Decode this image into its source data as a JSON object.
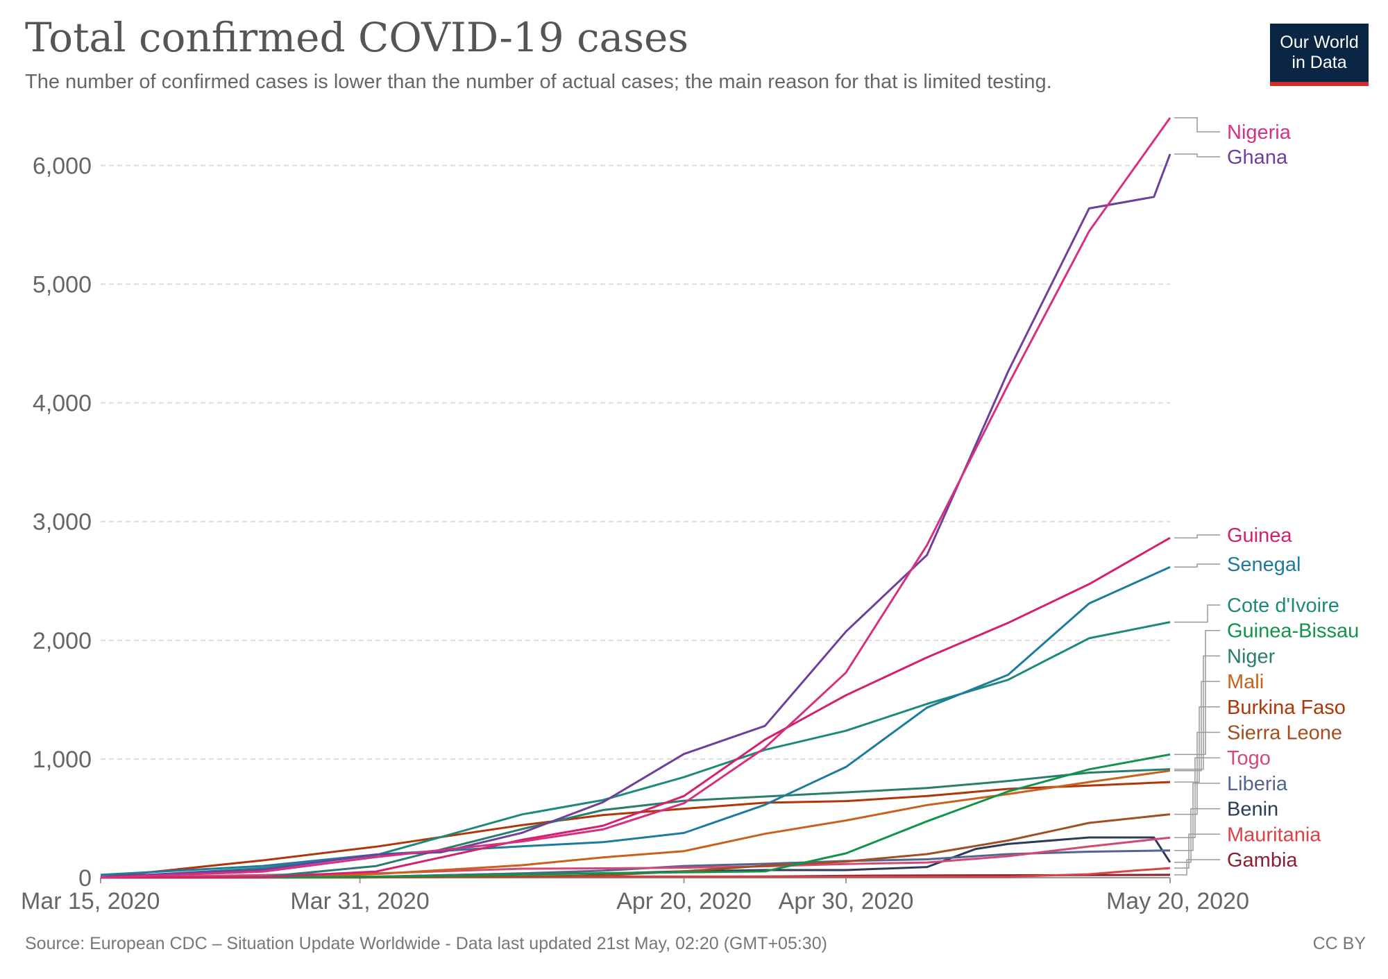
{
  "header": {
    "title": "Total confirmed COVID-19 cases",
    "subtitle": "The number of confirmed cases is lower than the number of actual cases; the main reason for that is limited testing.",
    "logo_text": "Our World in Data",
    "logo_color": "#0b2545",
    "logo_accent": "#d42b2b"
  },
  "footer": {
    "source": "Source: European CDC – Situation Update Worldwide - Data last updated 21st May, 02:20 (GMT+05:30)",
    "license": "CC BY"
  },
  "chart_data": {
    "type": "line",
    "title": "Total confirmed COVID-19 cases",
    "xlabel": "",
    "ylabel": "",
    "x_range": [
      "2020-03-15",
      "2020-05-20"
    ],
    "ylim": [
      0,
      6400
    ],
    "y_ticks": [
      0,
      1000,
      2000,
      3000,
      4000,
      5000,
      6000
    ],
    "y_tick_labels": [
      "0",
      "1,000",
      "2,000",
      "3,000",
      "4,000",
      "5,000",
      "6,000"
    ],
    "x_ticks": [
      "2020-03-15",
      "2020-03-31",
      "2020-04-20",
      "2020-04-30",
      "2020-05-20"
    ],
    "x_tick_labels": [
      "Mar 15, 2020",
      "Mar 31, 2020",
      "Apr 20, 2020",
      "Apr 30, 2020",
      "May 20, 2020"
    ],
    "grid": "horizontal dashed",
    "legend": "right, labels at line ends",
    "series": [
      {
        "name": "Nigeria",
        "color": "#d6317f",
        "points": [
          [
            "2020-03-15",
            2
          ],
          [
            "2020-03-25",
            51
          ],
          [
            "2020-04-01",
            174
          ],
          [
            "2020-04-10",
            305
          ],
          [
            "2020-04-15",
            407
          ],
          [
            "2020-04-20",
            627
          ],
          [
            "2020-04-25",
            1095
          ],
          [
            "2020-04-30",
            1728
          ],
          [
            "2020-05-05",
            2802
          ],
          [
            "2020-05-10",
            4151
          ],
          [
            "2020-05-15",
            5445
          ],
          [
            "2020-05-20",
            6401
          ]
        ]
      },
      {
        "name": "Ghana",
        "color": "#6e3f9c",
        "points": [
          [
            "2020-03-15",
            6
          ],
          [
            "2020-03-25",
            68
          ],
          [
            "2020-04-01",
            195
          ],
          [
            "2020-04-05",
            214
          ],
          [
            "2020-04-10",
            378
          ],
          [
            "2020-04-15",
            636
          ],
          [
            "2020-04-20",
            1042
          ],
          [
            "2020-04-25",
            1279
          ],
          [
            "2020-04-30",
            2074
          ],
          [
            "2020-05-05",
            2719
          ],
          [
            "2020-05-10",
            4263
          ],
          [
            "2020-05-15",
            5638
          ],
          [
            "2020-05-19",
            5735
          ],
          [
            "2020-05-20",
            6096
          ]
        ]
      },
      {
        "name": "Guinea",
        "color": "#d3216e",
        "points": [
          [
            "2020-03-15",
            1
          ],
          [
            "2020-03-25",
            4
          ],
          [
            "2020-04-01",
            52
          ],
          [
            "2020-04-10",
            319
          ],
          [
            "2020-04-15",
            438
          ],
          [
            "2020-04-20",
            688
          ],
          [
            "2020-04-25",
            1163
          ],
          [
            "2020-04-30",
            1537
          ],
          [
            "2020-05-05",
            1856
          ],
          [
            "2020-05-10",
            2146
          ],
          [
            "2020-05-15",
            2473
          ],
          [
            "2020-05-20",
            2863
          ]
        ]
      },
      {
        "name": "Senegal",
        "color": "#1e7b9e",
        "points": [
          [
            "2020-03-15",
            24
          ],
          [
            "2020-03-25",
            99
          ],
          [
            "2020-04-01",
            195
          ],
          [
            "2020-04-10",
            265
          ],
          [
            "2020-04-15",
            299
          ],
          [
            "2020-04-20",
            377
          ],
          [
            "2020-04-25",
            614
          ],
          [
            "2020-04-30",
            933
          ],
          [
            "2020-05-05",
            1433
          ],
          [
            "2020-05-10",
            1709
          ],
          [
            "2020-05-15",
            2310
          ],
          [
            "2020-05-20",
            2617
          ]
        ]
      },
      {
        "name": "Cote d'Ivoire",
        "color": "#1b8a7a",
        "points": [
          [
            "2020-03-15",
            1
          ],
          [
            "2020-03-25",
            80
          ],
          [
            "2020-04-01",
            190
          ],
          [
            "2020-04-10",
            533
          ],
          [
            "2020-04-15",
            654
          ],
          [
            "2020-04-20",
            847
          ],
          [
            "2020-04-25",
            1077
          ],
          [
            "2020-04-30",
            1238
          ],
          [
            "2020-05-05",
            1464
          ],
          [
            "2020-05-10",
            1667
          ],
          [
            "2020-05-15",
            2017
          ],
          [
            "2020-05-20",
            2153
          ]
        ]
      },
      {
        "name": "Guinea-Bissau",
        "color": "#13934a",
        "points": [
          [
            "2020-03-15",
            0
          ],
          [
            "2020-03-25",
            2
          ],
          [
            "2020-04-01",
            9
          ],
          [
            "2020-04-15",
            38
          ],
          [
            "2020-04-25",
            53
          ],
          [
            "2020-04-30",
            205
          ],
          [
            "2020-05-05",
            475
          ],
          [
            "2020-05-10",
            726
          ],
          [
            "2020-05-15",
            913
          ],
          [
            "2020-05-20",
            1038
          ]
        ]
      },
      {
        "name": "Niger",
        "color": "#2a7d6b",
        "points": [
          [
            "2020-03-15",
            0
          ],
          [
            "2020-03-25",
            7
          ],
          [
            "2020-04-01",
            98
          ],
          [
            "2020-04-10",
            410
          ],
          [
            "2020-04-15",
            570
          ],
          [
            "2020-04-20",
            648
          ],
          [
            "2020-04-25",
            684
          ],
          [
            "2020-04-30",
            719
          ],
          [
            "2020-05-05",
            755
          ],
          [
            "2020-05-10",
            815
          ],
          [
            "2020-05-15",
            885
          ],
          [
            "2020-05-20",
            914
          ]
        ]
      },
      {
        "name": "Mali",
        "color": "#c9611d",
        "points": [
          [
            "2020-03-15",
            0
          ],
          [
            "2020-03-25",
            2
          ],
          [
            "2020-04-01",
            31
          ],
          [
            "2020-04-10",
            105
          ],
          [
            "2020-04-15",
            171
          ],
          [
            "2020-04-20",
            224
          ],
          [
            "2020-04-25",
            370
          ],
          [
            "2020-04-30",
            482
          ],
          [
            "2020-05-05",
            612
          ],
          [
            "2020-05-10",
            704
          ],
          [
            "2020-05-15",
            806
          ],
          [
            "2020-05-20",
            901
          ]
        ]
      },
      {
        "name": "Burkina Faso",
        "color": "#b03508",
        "points": [
          [
            "2020-03-15",
            3
          ],
          [
            "2020-03-25",
            146
          ],
          [
            "2020-04-01",
            261
          ],
          [
            "2020-04-10",
            443
          ],
          [
            "2020-04-15",
            528
          ],
          [
            "2020-04-20",
            581
          ],
          [
            "2020-04-25",
            632
          ],
          [
            "2020-04-30",
            645
          ],
          [
            "2020-05-05",
            688
          ],
          [
            "2020-05-10",
            748
          ],
          [
            "2020-05-15",
            776
          ],
          [
            "2020-05-20",
            806
          ]
        ]
      },
      {
        "name": "Sierra Leone",
        "color": "#a14f22",
        "points": [
          [
            "2020-03-15",
            0
          ],
          [
            "2020-03-31",
            1
          ],
          [
            "2020-04-10",
            10
          ],
          [
            "2020-04-15",
            19
          ],
          [
            "2020-04-20",
            54
          ],
          [
            "2020-04-25",
            101
          ],
          [
            "2020-04-30",
            136
          ],
          [
            "2020-05-05",
            199
          ],
          [
            "2020-05-10",
            313
          ],
          [
            "2020-05-15",
            462
          ],
          [
            "2020-05-20",
            534
          ]
        ]
      },
      {
        "name": "Togo",
        "color": "#d04a75",
        "points": [
          [
            "2020-03-15",
            1
          ],
          [
            "2020-03-25",
            23
          ],
          [
            "2020-04-01",
            36
          ],
          [
            "2020-04-10",
            76
          ],
          [
            "2020-04-15",
            79
          ],
          [
            "2020-04-20",
            84
          ],
          [
            "2020-04-25",
            96
          ],
          [
            "2020-04-30",
            116
          ],
          [
            "2020-05-05",
            128
          ],
          [
            "2020-05-10",
            181
          ],
          [
            "2020-05-15",
            263
          ],
          [
            "2020-05-20",
            338
          ]
        ]
      },
      {
        "name": "Liberia",
        "color": "#52648f",
        "points": [
          [
            "2020-03-15",
            1
          ],
          [
            "2020-03-25",
            3
          ],
          [
            "2020-04-01",
            7
          ],
          [
            "2020-04-10",
            37
          ],
          [
            "2020-04-15",
            59
          ],
          [
            "2020-04-20",
            99
          ],
          [
            "2020-04-25",
            117
          ],
          [
            "2020-04-30",
            141
          ],
          [
            "2020-05-05",
            155
          ],
          [
            "2020-05-10",
            199
          ],
          [
            "2020-05-15",
            219
          ],
          [
            "2020-05-20",
            229
          ]
        ]
      },
      {
        "name": "Benin",
        "color": "#2d3b58",
        "points": [
          [
            "2020-03-15",
            0
          ],
          [
            "2020-03-25",
            5
          ],
          [
            "2020-04-01",
            9
          ],
          [
            "2020-04-10",
            35
          ],
          [
            "2020-04-15",
            35
          ],
          [
            "2020-04-20",
            54
          ],
          [
            "2020-04-25",
            64
          ],
          [
            "2020-04-30",
            64
          ],
          [
            "2020-05-05",
            90
          ],
          [
            "2020-05-08",
            242
          ],
          [
            "2020-05-10",
            284
          ],
          [
            "2020-05-15",
            339
          ],
          [
            "2020-05-19",
            339
          ],
          [
            "2020-05-20",
            130
          ]
        ]
      },
      {
        "name": "Mauritania",
        "color": "#d84344",
        "points": [
          [
            "2020-03-15",
            1
          ],
          [
            "2020-04-01",
            6
          ],
          [
            "2020-04-20",
            7
          ],
          [
            "2020-05-10",
            8
          ],
          [
            "2020-05-15",
            29
          ],
          [
            "2020-05-18",
            62
          ],
          [
            "2020-05-20",
            81
          ]
        ]
      },
      {
        "name": "Gambia",
        "color": "#8a1f2f",
        "points": [
          [
            "2020-03-15",
            0
          ],
          [
            "2020-03-25",
            3
          ],
          [
            "2020-04-10",
            9
          ],
          [
            "2020-04-25",
            10
          ],
          [
            "2020-05-01",
            17
          ],
          [
            "2020-05-20",
            24
          ]
        ]
      }
    ]
  }
}
